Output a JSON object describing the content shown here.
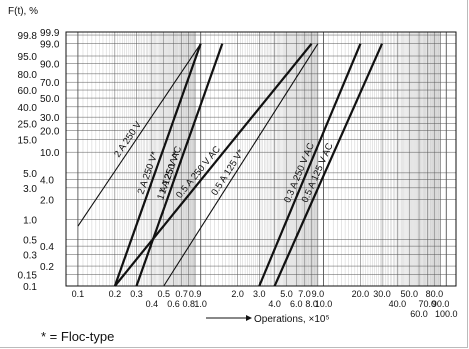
{
  "chart_data": {
    "type": "line",
    "title": "",
    "ylabel": "F(t), %",
    "xlabel": "Operations, ×10⁵",
    "x_scale": "log",
    "y_scale": "weibull",
    "xlim": [
      0.08,
      120
    ],
    "ylim": [
      0.1,
      99.9
    ],
    "grid": true,
    "x_major_labels": [
      "0.1",
      "0.2",
      "0.3",
      "0.4",
      "0.5",
      "0.6",
      "0.7",
      "0.8",
      "0.9",
      "1.0",
      "2.0",
      "3.0",
      "4.0",
      "5.0",
      "6.0",
      "7.0",
      "8.0",
      "9.0",
      "10.0",
      "20.0",
      "30.0",
      "40.0",
      "50.0",
      "60.0",
      "70.0",
      "80.0",
      "90.0",
      "100.0"
    ],
    "y_labels_primary": [
      "99.8",
      "95.0",
      "80.0",
      "60.0",
      "40.0",
      "25.0",
      "15.0",
      "5.0",
      "3.0",
      "1.0",
      "0.5",
      "0.3",
      "0.15",
      "0.1"
    ],
    "y_labels_secondary": [
      "99.9",
      "99.0",
      "90.0",
      "70.0",
      "50.0",
      "30.0",
      "20.0",
      "10.0",
      "4.0",
      "2.0",
      "0.4",
      "0.2"
    ],
    "series": [
      {
        "name": "2 A 250 V",
        "x": [
          0.1,
          1.0
        ],
        "y": [
          0.8,
          99.0
        ],
        "thick": false
      },
      {
        "name": "2 A 250 V*",
        "x": [
          0.2,
          1.0
        ],
        "y": [
          0.1,
          99.0
        ],
        "thick": true
      },
      {
        "name": "1 A 250 V*",
        "x": [
          0.3,
          1.5
        ],
        "y": [
          0.1,
          99.0
        ],
        "thick": false
      },
      {
        "name": "1 A 125 V AC",
        "x": [
          0.3,
          1.5
        ],
        "y": [
          0.1,
          99.0
        ],
        "thick": true
      },
      {
        "name": "0.5 A 250 V AC",
        "x": [
          0.2,
          8.0
        ],
        "y": [
          0.1,
          99.0
        ],
        "thick": true
      },
      {
        "name": "0.5 A 125 V*",
        "x": [
          0.5,
          9.0
        ],
        "y": [
          0.1,
          99.0
        ],
        "thick": false
      },
      {
        "name": "0.3 A 250 V AC",
        "x": [
          3.0,
          20.0
        ],
        "y": [
          0.1,
          99.0
        ],
        "thick": true
      },
      {
        "name": "0.5 A 125 V AC",
        "x": [
          4.0,
          30.0
        ],
        "y": [
          0.1,
          99.0
        ],
        "thick": true
      }
    ]
  },
  "footnote": "* = Floc-type"
}
